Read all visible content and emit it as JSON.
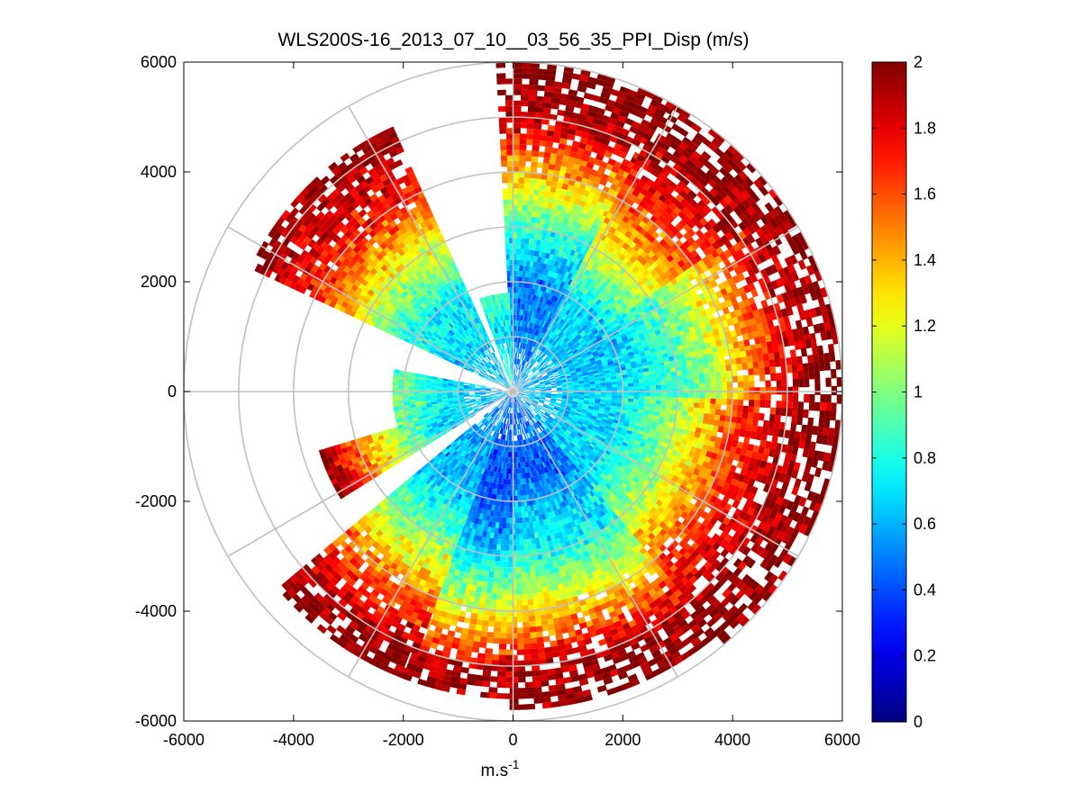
{
  "chart_data": {
    "type": "heatmap",
    "subtype": "polar-ppi",
    "title": "WLS200S-16_2013_07_10__03_56_35_PPI_Disp (m/s)",
    "xlabel": "m.s",
    "xlabel_superscript": "-1",
    "ylabel": "",
    "xlim": [
      -6000,
      6000
    ],
    "ylim": [
      -6000,
      6000
    ],
    "x_ticks": [
      -6000,
      -4000,
      -2000,
      0,
      2000,
      4000,
      6000
    ],
    "y_ticks": [
      -6000,
      -4000,
      -2000,
      0,
      2000,
      4000,
      6000
    ],
    "x_tick_labels": [
      "-6000",
      "-4000",
      "-2000",
      "0",
      "2000",
      "4000",
      "6000"
    ],
    "y_tick_labels": [
      "-6000",
      "-4000",
      "-2000",
      "0",
      "2000",
      "4000",
      "6000"
    ],
    "polar_grid": {
      "ring_radii": [
        1000,
        2000,
        3000,
        4000,
        5000,
        6000
      ],
      "spoke_angles_deg": [
        0,
        30,
        60,
        90,
        120,
        150,
        180,
        210,
        240,
        270,
        300,
        330
      ]
    },
    "max_range": 6000,
    "colorbar": {
      "colormap": "jet",
      "clim": [
        0,
        2
      ],
      "ticks": [
        0,
        0.2,
        0.4,
        0.6,
        0.8,
        1,
        1.2,
        1.4,
        1.6,
        1.8,
        2
      ],
      "tick_labels": [
        "0",
        "0.2",
        "0.4",
        "0.6",
        "0.8",
        "1",
        "1.2",
        "1.4",
        "1.6",
        "1.8",
        "2"
      ]
    },
    "range_gates": {
      "start": 100,
      "step": 100,
      "count": 60
    },
    "sectors": [
      {
        "from_deg": -3,
        "to_deg": 28,
        "max_range": 6000,
        "profile": [
          [
            0,
            0.55
          ],
          [
            2000,
            0.5
          ],
          [
            3000,
            0.85
          ],
          [
            4000,
            1.4
          ],
          [
            5000,
            1.9
          ],
          [
            6000,
            2.0
          ]
        ]
      },
      {
        "from_deg": 28,
        "to_deg": 55,
        "max_range": 6000,
        "profile": [
          [
            0,
            0.6
          ],
          [
            2000,
            0.7
          ],
          [
            3000,
            1.2
          ],
          [
            4000,
            1.6
          ],
          [
            5000,
            1.9
          ],
          [
            6000,
            2.0
          ]
        ]
      },
      {
        "from_deg": 55,
        "to_deg": 80,
        "max_range": 6000,
        "profile": [
          [
            0,
            0.6
          ],
          [
            2000,
            0.65
          ],
          [
            3000,
            0.9
          ],
          [
            4000,
            1.3
          ],
          [
            5000,
            1.8
          ],
          [
            6000,
            2.0
          ]
        ]
      },
      {
        "from_deg": 80,
        "to_deg": 92,
        "max_range": 6000,
        "profile": [
          [
            0,
            0.6
          ],
          [
            2000,
            0.7
          ],
          [
            3500,
            1.0
          ],
          [
            4500,
            1.6
          ],
          [
            5500,
            2.0
          ],
          [
            6000,
            2.0
          ]
        ]
      },
      {
        "from_deg": 92,
        "to_deg": 140,
        "max_range": 6000,
        "profile": [
          [
            0,
            0.6
          ],
          [
            2000,
            0.7
          ],
          [
            3000,
            1.1
          ],
          [
            4000,
            1.6
          ],
          [
            5000,
            1.9
          ],
          [
            6000,
            2.0
          ]
        ]
      },
      {
        "from_deg": 140,
        "to_deg": 180,
        "max_range": 5800,
        "profile": [
          [
            0,
            0.5
          ],
          [
            1500,
            0.45
          ],
          [
            3000,
            0.8
          ],
          [
            4000,
            1.3
          ],
          [
            5000,
            1.9
          ],
          [
            5800,
            2.0
          ]
        ]
      },
      {
        "from_deg": 180,
        "to_deg": 200,
        "max_range": 5600,
        "profile": [
          [
            0,
            0.45
          ],
          [
            2000,
            0.4
          ],
          [
            3000,
            0.7
          ],
          [
            4000,
            1.2
          ],
          [
            5000,
            1.8
          ],
          [
            5600,
            2.0
          ]
        ]
      },
      {
        "from_deg": 200,
        "to_deg": 230,
        "max_range": 5600,
        "profile": [
          [
            0,
            0.5
          ],
          [
            2000,
            0.65
          ],
          [
            3000,
            1.0
          ],
          [
            4000,
            1.5
          ],
          [
            5000,
            1.9
          ],
          [
            5600,
            2.0
          ]
        ]
      },
      {
        "from_deg": 238,
        "to_deg": 252,
        "max_range": 3700,
        "profile": [
          [
            0,
            0.6
          ],
          [
            1500,
            0.7
          ],
          [
            2500,
            1.2
          ],
          [
            3700,
            2.0
          ]
        ]
      },
      {
        "from_deg": 252,
        "to_deg": 280,
        "max_range": 2200,
        "profile": [
          [
            0,
            0.6
          ],
          [
            1200,
            0.7
          ],
          [
            2200,
            1.0
          ]
        ]
      },
      {
        "from_deg": 295,
        "to_deg": 335,
        "max_range": 5300,
        "profile": [
          [
            0,
            0.6
          ],
          [
            2000,
            0.75
          ],
          [
            3000,
            1.2
          ],
          [
            4000,
            1.7
          ],
          [
            5300,
            2.0
          ]
        ]
      },
      {
        "from_deg": 340,
        "to_deg": 357,
        "max_range": 1800,
        "profile": [
          [
            0,
            0.9
          ],
          [
            1000,
            0.7
          ],
          [
            1800,
            0.9
          ]
        ]
      }
    ],
    "missing_sectors_deg": [
      [
        230,
        238
      ],
      [
        280,
        295
      ],
      [
        335,
        340
      ]
    ]
  }
}
